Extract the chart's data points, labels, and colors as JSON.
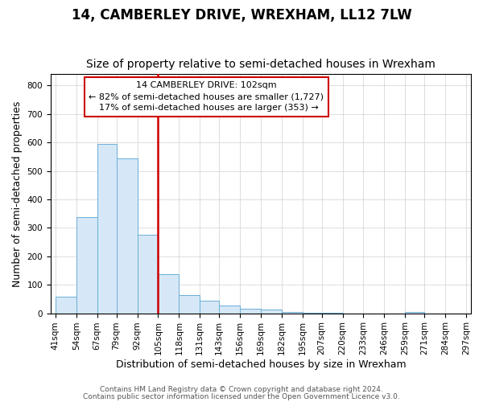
{
  "title": "14, CAMBERLEY DRIVE, WREXHAM, LL12 7LW",
  "subtitle": "Size of property relative to semi-detached houses in Wrexham",
  "xlabel": "Distribution of semi-detached houses by size in Wrexham",
  "ylabel": "Number of semi-detached properties",
  "property_label": "14 CAMBERLEY DRIVE: 102sqm",
  "smaller_pct": 82,
  "smaller_count": 1727,
  "larger_pct": 17,
  "larger_count": 353,
  "bar_color": "#d6e8f7",
  "bar_edge_color": "#6aaed6",
  "vline_color": "#cc0000",
  "annotation_box_color": "#ffffff",
  "annotation_box_edge": "#cc0000",
  "bins": [
    41,
    54,
    67,
    79,
    92,
    105,
    118,
    131,
    143,
    156,
    169,
    182,
    195,
    207,
    220,
    233,
    246,
    259,
    271,
    284,
    297
  ],
  "bin_labels": [
    "41sqm",
    "54sqm",
    "67sqm",
    "79sqm",
    "92sqm",
    "105sqm",
    "118sqm",
    "131sqm",
    "143sqm",
    "156sqm",
    "169sqm",
    "182sqm",
    "195sqm",
    "207sqm",
    "220sqm",
    "233sqm",
    "246sqm",
    "259sqm",
    "271sqm",
    "284sqm",
    "297sqm"
  ],
  "counts": [
    57,
    337,
    595,
    543,
    275,
    137,
    65,
    45,
    27,
    17,
    13,
    5,
    2,
    1,
    0,
    0,
    0,
    5,
    0,
    0
  ],
  "ylim": [
    0,
    840
  ],
  "yticks": [
    0,
    100,
    200,
    300,
    400,
    500,
    600,
    700,
    800
  ],
  "footer_line1": "Contains HM Land Registry data © Crown copyright and database right 2024.",
  "footer_line2": "Contains public sector information licensed under the Open Government Licence v3.0.",
  "background_color": "#ffffff",
  "grid_color": "#d0d0d0",
  "title_fontsize": 12,
  "subtitle_fontsize": 10,
  "axis_label_fontsize": 9,
  "tick_fontsize": 7.5,
  "footer_fontsize": 6.5
}
